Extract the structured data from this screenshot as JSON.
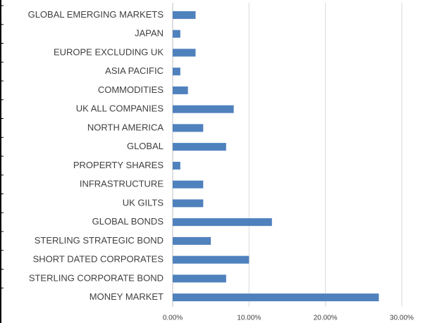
{
  "chart_data": {
    "type": "bar",
    "orientation": "horizontal",
    "categories": [
      "GLOBAL EMERGING MARKETS",
      "JAPAN",
      "EUROPE EXCLUDING UK",
      "ASIA PACIFIC",
      "COMMODITIES",
      "UK ALL COMPANIES",
      "NORTH AMERICA",
      "GLOBAL",
      "PROPERTY SHARES",
      "INFRASTRUCTURE",
      "UK GILTS",
      "GLOBAL BONDS",
      "STERLING STRATEGIC BOND",
      "SHORT DATED CORPORATES",
      "STERLING CORPORATE BOND",
      "MONEY MARKET"
    ],
    "values": [
      3,
      1,
      3,
      1,
      2,
      8,
      4,
      7,
      1,
      4,
      4,
      13,
      5,
      10,
      7,
      27
    ],
    "color": "#4f81bd",
    "xlim": [
      0,
      30
    ],
    "xticks": [
      {
        "value": 0,
        "label": "0.00%"
      },
      {
        "value": 10,
        "label": "10.00%"
      },
      {
        "value": 20,
        "label": "20.00%"
      },
      {
        "value": 30,
        "label": "30.00%"
      }
    ],
    "grid": true
  }
}
